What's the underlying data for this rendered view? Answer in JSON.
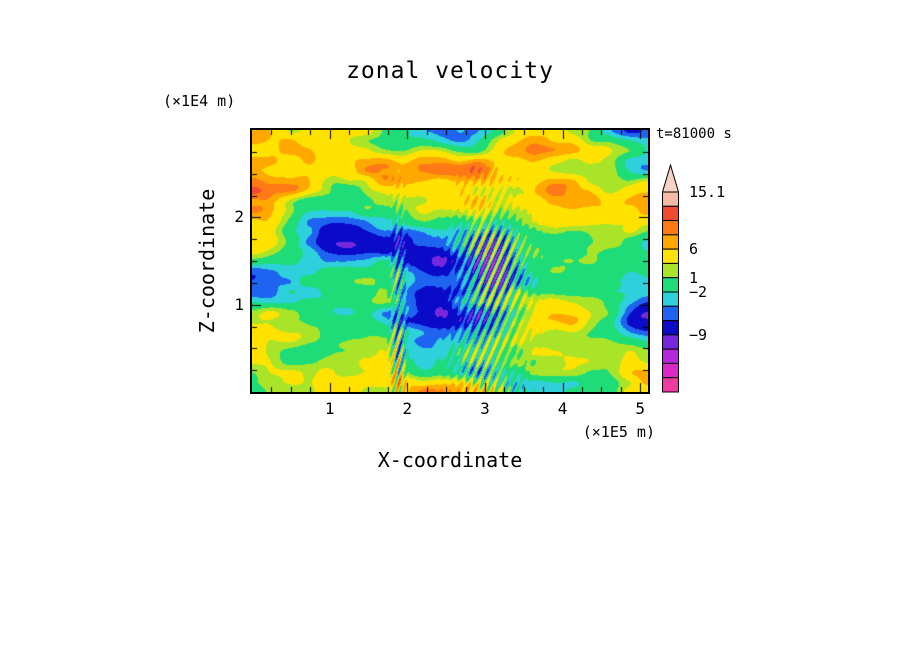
{
  "chart_data": {
    "type": "heatmap",
    "title": "zonal velocity",
    "timestamp": "t=81000 s",
    "xlabel": "X-coordinate",
    "ylabel": "Z-coordinate",
    "x_units": "(×1E5 m)",
    "y_units": "(×1E4 m)",
    "x_range": [
      0,
      5.1
    ],
    "y_range": [
      0,
      3
    ],
    "x_ticks": [
      1,
      2,
      3,
      4,
      5
    ],
    "y_ticks": [
      1,
      2
    ],
    "minor_tick_step": 0.25,
    "levels_ascending": [
      -15,
      -13,
      -11,
      -9,
      -6,
      -4,
      -2,
      1,
      3,
      6,
      8,
      10,
      12,
      15.1
    ],
    "colors_ascending": [
      "#F03CA0",
      "#DC28C8",
      "#B428DC",
      "#7828DC",
      "#0A0AC8",
      "#1E64F0",
      "#2ED0DC",
      "#1EDC78",
      "#AAE428",
      "#FFE200",
      "#FFA800",
      "#FF7A14",
      "#F24A2E",
      "#F6BBA4",
      "#F8D2C2"
    ],
    "colorbar": {
      "tick_labels": [
        "15.1",
        "6",
        "1",
        "−2",
        "−9"
      ],
      "tick_boundary_indices": [
        0,
        4,
        6,
        7,
        10
      ]
    },
    "frame_color": "#000000",
    "background_color": "#FFFFFF",
    "text_color": "#000000",
    "description": "Filled-contour vertical cross-section of zonal velocity: green background with horizontally elongated yellow/orange bands, blue/navy patches, and fine tilted orange-blue-magenta streak clusters near x≈2 and x≈3–3.5 (×1E5 m)."
  }
}
